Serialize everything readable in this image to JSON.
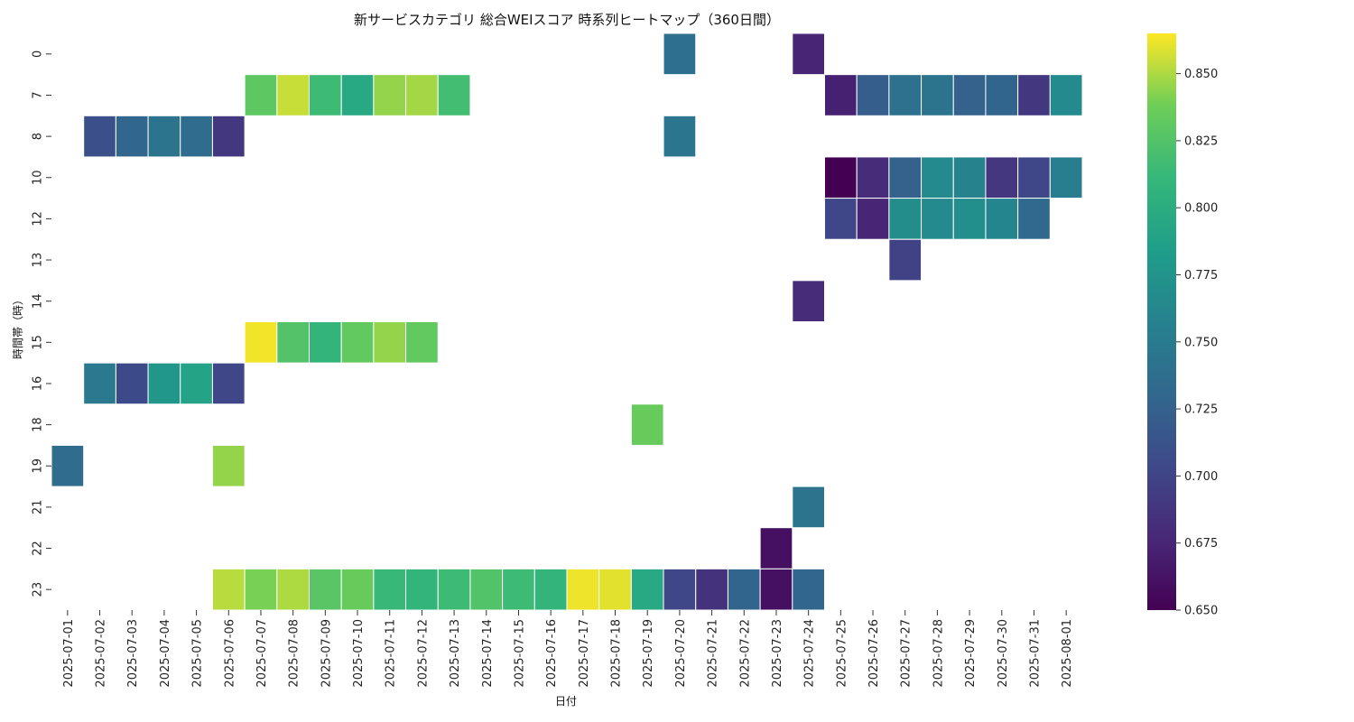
{
  "chart_data": {
    "type": "heatmap",
    "title": "新サービスカテゴリ 総合WEIスコア 時系列ヒートマップ（360日間）",
    "xlabel": "日付",
    "ylabel": "時間帯（時）",
    "x": [
      "2025-07-01",
      "2025-07-02",
      "2025-07-03",
      "2025-07-04",
      "2025-07-05",
      "2025-07-06",
      "2025-07-07",
      "2025-07-08",
      "2025-07-09",
      "2025-07-10",
      "2025-07-11",
      "2025-07-12",
      "2025-07-13",
      "2025-07-14",
      "2025-07-15",
      "2025-07-16",
      "2025-07-17",
      "2025-07-18",
      "2025-07-19",
      "2025-07-20",
      "2025-07-21",
      "2025-07-22",
      "2025-07-23",
      "2025-07-24",
      "2025-07-25",
      "2025-07-26",
      "2025-07-27",
      "2025-07-28",
      "2025-07-29",
      "2025-07-30",
      "2025-07-31",
      "2025-08-01"
    ],
    "y": [
      "0",
      "7",
      "8",
      "10",
      "12",
      "13",
      "14",
      "15",
      "16",
      "18",
      "19",
      "21",
      "22",
      "23"
    ],
    "colormap": "viridis",
    "vmin": 0.65,
    "vmax": 0.865,
    "colorbar_ticks": [
      "0.650",
      "0.675",
      "0.700",
      "0.725",
      "0.750",
      "0.775",
      "0.800",
      "0.825",
      "0.850"
    ],
    "grid": false,
    "cells": [
      {
        "x": "2025-07-20",
        "y": "0",
        "value": 0.737
      },
      {
        "x": "2025-07-24",
        "y": "0",
        "value": 0.675
      },
      {
        "x": "2025-07-07",
        "y": "7",
        "value": 0.83
      },
      {
        "x": "2025-07-08",
        "y": "7",
        "value": 0.855
      },
      {
        "x": "2025-07-09",
        "y": "7",
        "value": 0.815
      },
      {
        "x": "2025-07-10",
        "y": "7",
        "value": 0.795
      },
      {
        "x": "2025-07-11",
        "y": "7",
        "value": 0.845
      },
      {
        "x": "2025-07-12",
        "y": "7",
        "value": 0.848
      },
      {
        "x": "2025-07-13",
        "y": "7",
        "value": 0.818
      },
      {
        "x": "2025-07-25",
        "y": "7",
        "value": 0.672
      },
      {
        "x": "2025-07-26",
        "y": "7",
        "value": 0.722
      },
      {
        "x": "2025-07-27",
        "y": "7",
        "value": 0.74
      },
      {
        "x": "2025-07-28",
        "y": "7",
        "value": 0.742
      },
      {
        "x": "2025-07-29",
        "y": "7",
        "value": 0.725
      },
      {
        "x": "2025-07-30",
        "y": "7",
        "value": 0.728
      },
      {
        "x": "2025-07-31",
        "y": "7",
        "value": 0.69
      },
      {
        "x": "2025-08-01",
        "y": "7",
        "value": 0.765
      },
      {
        "x": "2025-07-02",
        "y": "8",
        "value": 0.71
      },
      {
        "x": "2025-07-03",
        "y": "8",
        "value": 0.73
      },
      {
        "x": "2025-07-04",
        "y": "8",
        "value": 0.742
      },
      {
        "x": "2025-07-05",
        "y": "8",
        "value": 0.735
      },
      {
        "x": "2025-07-06",
        "y": "8",
        "value": 0.69
      },
      {
        "x": "2025-07-20",
        "y": "8",
        "value": 0.745
      },
      {
        "x": "2025-07-25",
        "y": "10",
        "value": 0.65
      },
      {
        "x": "2025-07-26",
        "y": "10",
        "value": 0.68
      },
      {
        "x": "2025-07-27",
        "y": "10",
        "value": 0.725
      },
      {
        "x": "2025-07-28",
        "y": "10",
        "value": 0.765
      },
      {
        "x": "2025-07-29",
        "y": "10",
        "value": 0.758
      },
      {
        "x": "2025-07-30",
        "y": "10",
        "value": 0.688
      },
      {
        "x": "2025-07-31",
        "y": "10",
        "value": 0.702
      },
      {
        "x": "2025-08-01",
        "y": "10",
        "value": 0.752
      },
      {
        "x": "2025-07-25",
        "y": "12",
        "value": 0.702
      },
      {
        "x": "2025-07-26",
        "y": "12",
        "value": 0.675
      },
      {
        "x": "2025-07-27",
        "y": "12",
        "value": 0.768
      },
      {
        "x": "2025-07-28",
        "y": "12",
        "value": 0.765
      },
      {
        "x": "2025-07-29",
        "y": "12",
        "value": 0.77
      },
      {
        "x": "2025-07-30",
        "y": "12",
        "value": 0.76
      },
      {
        "x": "2025-07-31",
        "y": "12",
        "value": 0.732
      },
      {
        "x": "2025-07-27",
        "y": "13",
        "value": 0.698
      },
      {
        "x": "2025-07-24",
        "y": "14",
        "value": 0.68
      },
      {
        "x": "2025-07-07",
        "y": "15",
        "value": 0.863
      },
      {
        "x": "2025-07-08",
        "y": "15",
        "value": 0.825
      },
      {
        "x": "2025-07-09",
        "y": "15",
        "value": 0.808
      },
      {
        "x": "2025-07-10",
        "y": "15",
        "value": 0.832
      },
      {
        "x": "2025-07-11",
        "y": "15",
        "value": 0.845
      },
      {
        "x": "2025-07-12",
        "y": "15",
        "value": 0.832
      },
      {
        "x": "2025-07-02",
        "y": "16",
        "value": 0.748
      },
      {
        "x": "2025-07-03",
        "y": "16",
        "value": 0.705
      },
      {
        "x": "2025-07-04",
        "y": "16",
        "value": 0.778
      },
      {
        "x": "2025-07-05",
        "y": "16",
        "value": 0.79
      },
      {
        "x": "2025-07-06",
        "y": "16",
        "value": 0.702
      },
      {
        "x": "2025-07-19",
        "y": "18",
        "value": 0.835
      },
      {
        "x": "2025-07-01",
        "y": "19",
        "value": 0.735
      },
      {
        "x": "2025-07-06",
        "y": "19",
        "value": 0.845
      },
      {
        "x": "2025-07-24",
        "y": "21",
        "value": 0.742
      },
      {
        "x": "2025-07-23",
        "y": "22",
        "value": 0.66
      },
      {
        "x": "2025-07-06",
        "y": "23",
        "value": 0.852
      },
      {
        "x": "2025-07-07",
        "y": "23",
        "value": 0.84
      },
      {
        "x": "2025-07-08",
        "y": "23",
        "value": 0.85
      },
      {
        "x": "2025-07-09",
        "y": "23",
        "value": 0.828
      },
      {
        "x": "2025-07-10",
        "y": "23",
        "value": 0.835
      },
      {
        "x": "2025-07-11",
        "y": "23",
        "value": 0.812
      },
      {
        "x": "2025-07-12",
        "y": "23",
        "value": 0.808
      },
      {
        "x": "2025-07-13",
        "y": "23",
        "value": 0.815
      },
      {
        "x": "2025-07-14",
        "y": "23",
        "value": 0.825
      },
      {
        "x": "2025-07-15",
        "y": "23",
        "value": 0.815
      },
      {
        "x": "2025-07-16",
        "y": "23",
        "value": 0.808
      },
      {
        "x": "2025-07-17",
        "y": "23",
        "value": 0.862
      },
      {
        "x": "2025-07-18",
        "y": "23",
        "value": 0.86
      },
      {
        "x": "2025-07-19",
        "y": "23",
        "value": 0.795
      },
      {
        "x": "2025-07-20",
        "y": "23",
        "value": 0.702
      },
      {
        "x": "2025-07-21",
        "y": "23",
        "value": 0.685
      },
      {
        "x": "2025-07-22",
        "y": "23",
        "value": 0.728
      },
      {
        "x": "2025-07-23",
        "y": "23",
        "value": 0.66
      },
      {
        "x": "2025-07-24",
        "y": "23",
        "value": 0.73
      }
    ]
  }
}
